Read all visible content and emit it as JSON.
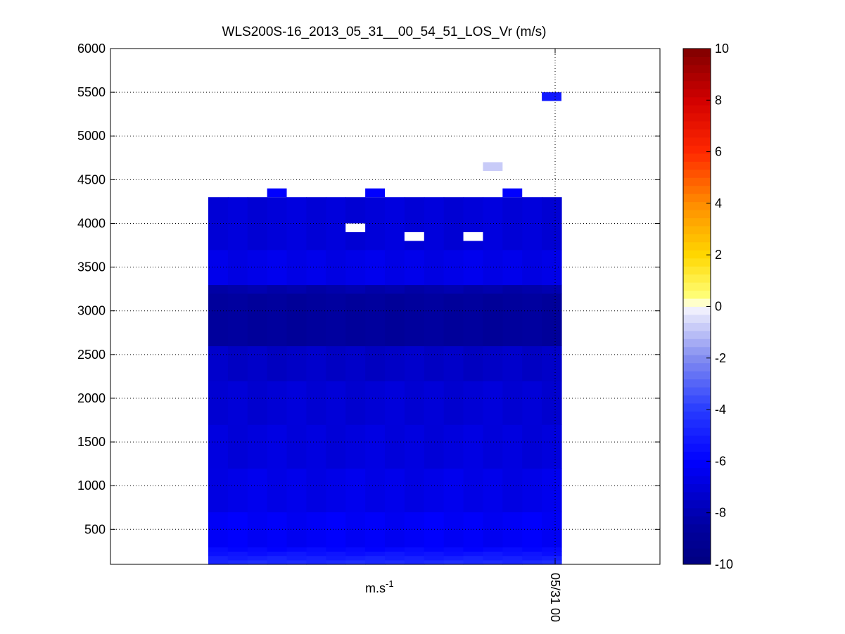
{
  "chart_data": {
    "type": "heatmap",
    "title": "WLS200S-16_2013_05_31__00_54_51_LOS_Vr (m/s)",
    "xlabel": "m.s",
    "xlabel_superscript": "-1",
    "ylabel": "",
    "ylim": [
      100,
      6000
    ],
    "y_ticks": [
      "500",
      "1000",
      "1500",
      "2000",
      "2500",
      "3000",
      "3500",
      "4000",
      "4500",
      "5000",
      "5500",
      "6000"
    ],
    "x_tick_labels": [
      "05/31 00"
    ],
    "grid": true,
    "colorbar": {
      "range": [
        -10,
        10
      ],
      "ticks": [
        "-10",
        "-8",
        "-6",
        "-4",
        "-2",
        "0",
        "2",
        "4",
        "6",
        "8",
        "10"
      ]
    },
    "x_columns": 18,
    "range_gates": [
      {
        "from": 100,
        "to": 150,
        "value": -4.6
      },
      {
        "from": 150,
        "to": 200,
        "value": -5.0
      },
      {
        "from": 200,
        "to": 250,
        "value": -5.4
      },
      {
        "from": 250,
        "to": 300,
        "value": -5.8
      },
      {
        "from": 300,
        "to": 700,
        "value": -6.2
      },
      {
        "from": 700,
        "to": 1200,
        "value": -6.6
      },
      {
        "from": 1200,
        "to": 1700,
        "value": -6.9
      },
      {
        "from": 1700,
        "to": 2200,
        "value": -7.1
      },
      {
        "from": 2200,
        "to": 2600,
        "value": -7.5
      },
      {
        "from": 2600,
        "to": 3200,
        "value": -8.7
      },
      {
        "from": 3200,
        "to": 3300,
        "value": -8.2
      },
      {
        "from": 3300,
        "to": 3700,
        "value": -6.6
      },
      {
        "from": 3700,
        "to": 4300,
        "value": -7.0
      }
    ],
    "extra_cells": [
      {
        "col": 3,
        "from": 4300,
        "to": 4400,
        "value": -6.0
      },
      {
        "col": 8,
        "from": 4300,
        "to": 4400,
        "value": -6.0
      },
      {
        "col": 15,
        "from": 4300,
        "to": 4400,
        "value": -6.0
      },
      {
        "col": 14,
        "from": 4600,
        "to": 4700,
        "value": -0.8
      },
      {
        "col": 17,
        "from": 5400,
        "to": 5500,
        "value": -5.2
      }
    ],
    "missing_cells": [
      {
        "col": 7,
        "from": 3900,
        "to": 4000
      },
      {
        "col": 10,
        "from": 3800,
        "to": 3900
      },
      {
        "col": 13,
        "from": 3800,
        "to": 3900
      }
    ]
  }
}
